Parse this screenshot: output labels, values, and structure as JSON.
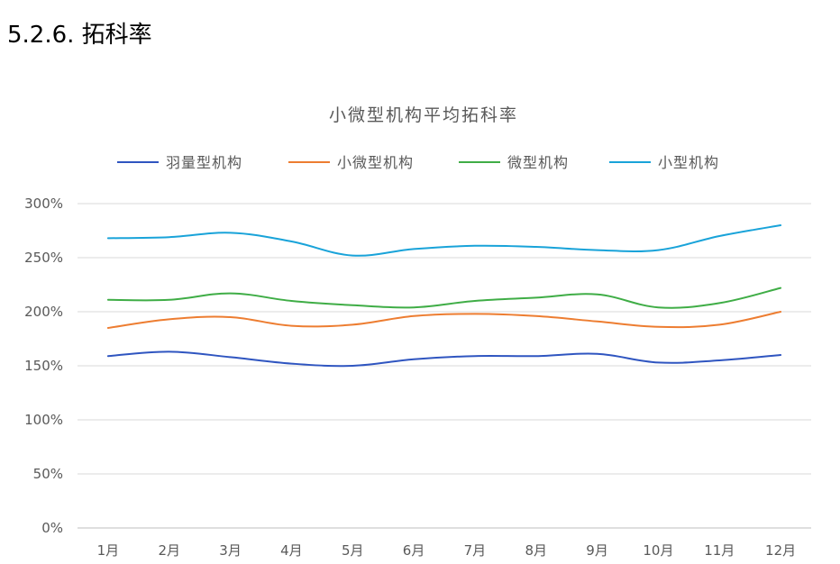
{
  "section": {
    "heading": "5.2.6.  拓科率"
  },
  "chart_data": {
    "type": "line",
    "title": "小微型机构平均拓科率",
    "xlabel": "",
    "ylabel": "",
    "categories": [
      "1月",
      "2月",
      "3月",
      "4月",
      "5月",
      "6月",
      "7月",
      "8月",
      "9月",
      "10月",
      "11月",
      "12月"
    ],
    "ylim": [
      0,
      300
    ],
    "yticks": [
      0,
      50,
      100,
      150,
      200,
      250,
      300
    ],
    "ytick_labels": [
      "0%",
      "50%",
      "100%",
      "150%",
      "200%",
      "250%",
      "300%"
    ],
    "grid": true,
    "legend_position": "top",
    "series": [
      {
        "name": "羽量型机构",
        "color": "#2f55c0",
        "values": [
          159,
          163,
          158,
          152,
          150,
          156,
          159,
          159,
          161,
          153,
          155,
          160
        ]
      },
      {
        "name": "小微型机构",
        "color": "#ed7d31",
        "values": [
          185,
          193,
          195,
          187,
          188,
          196,
          198,
          196,
          191,
          186,
          188,
          200
        ]
      },
      {
        "name": "微型机构",
        "color": "#3fad46",
        "values": [
          211,
          211,
          217,
          210,
          206,
          204,
          210,
          213,
          216,
          204,
          208,
          222
        ]
      },
      {
        "name": "小型机构",
        "color": "#19a3d9",
        "values": [
          268,
          269,
          273,
          265,
          252,
          258,
          261,
          260,
          257,
          257,
          270,
          280
        ]
      }
    ]
  }
}
